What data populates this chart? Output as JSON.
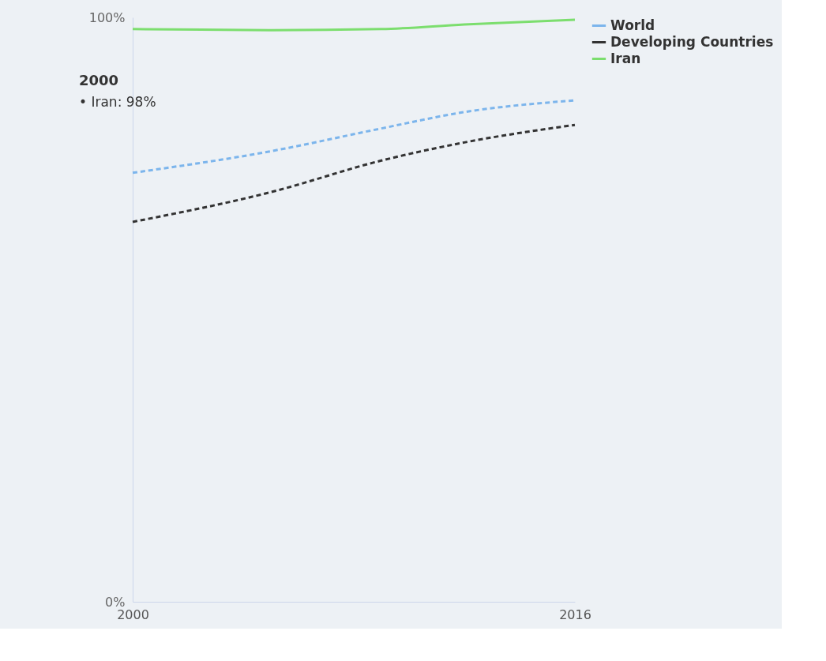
{
  "chart_data": {
    "type": "line",
    "xlim": [
      2000,
      2016
    ],
    "xticks": [
      2000,
      2016
    ],
    "ylim": [
      0,
      100
    ],
    "yticks": [
      {
        "value": 0,
        "label": "0%"
      },
      {
        "value": 100,
        "label": "100%"
      }
    ],
    "legend": "top right",
    "grid": false,
    "series": [
      {
        "name": "World",
        "color": "#7cb5ec",
        "line_style": "dashed",
        "x": [
          2000,
          2005,
          2009,
          2012,
          2016
        ],
        "values": [
          73.4,
          77.1,
          81,
          83.8,
          85.8
        ]
      },
      {
        "name": "Developing Countries",
        "color": "#333333",
        "line_style": "dashed",
        "x": [
          2000,
          2005,
          2009,
          2012,
          2016
        ],
        "values": [
          65,
          70.1,
          75.5,
          78.6,
          81.6
        ]
      },
      {
        "name": "Iran",
        "color": "#7cde6e",
        "line_style": "solid",
        "x": [
          2000,
          2005,
          2009,
          2012,
          2016
        ],
        "values": [
          98,
          97.8,
          98,
          98.8,
          99.6
        ]
      }
    ],
    "annotations": [
      "2000",
      "• Iran: 98%"
    ]
  }
}
